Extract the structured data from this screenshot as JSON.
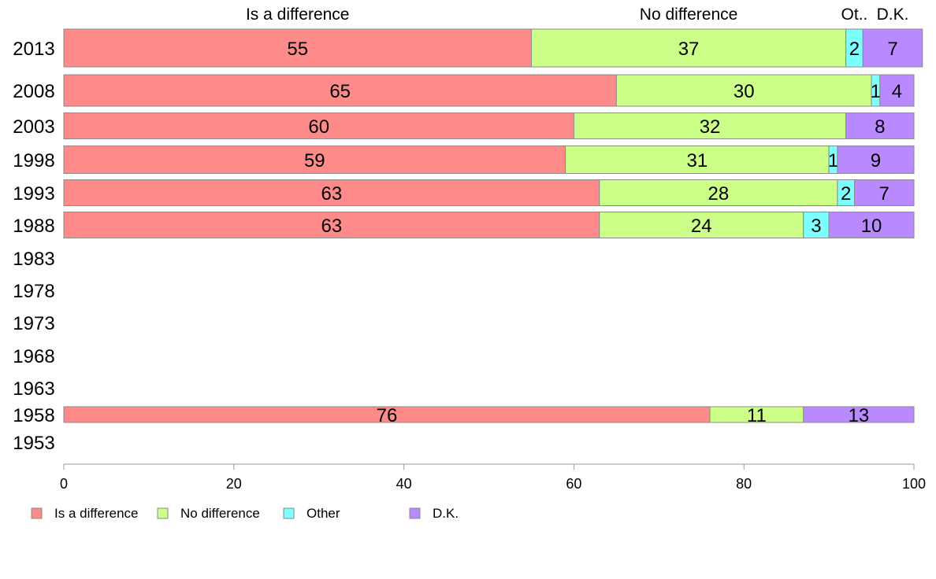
{
  "chart_data": {
    "type": "bar",
    "orientation": "horizontal",
    "stacked": true,
    "title": "",
    "xlabel": "",
    "ylabel": "",
    "xlim": [
      0,
      100
    ],
    "x_ticks": [
      "0",
      "20",
      "40",
      "60",
      "80",
      "100"
    ],
    "categories": [
      "2013",
      "2008",
      "2003",
      "1998",
      "1993",
      "1988",
      "1983",
      "1978",
      "1973",
      "1968",
      "1963",
      "1958",
      "1953"
    ],
    "column_headers": [
      "Is a difference",
      "No difference",
      "Ot..",
      "D.K."
    ],
    "series": [
      {
        "name": "Is a difference",
        "color": "#FF8A8A",
        "values": [
          55,
          65,
          60,
          59,
          63,
          63,
          null,
          null,
          null,
          null,
          null,
          76,
          null
        ]
      },
      {
        "name": "No difference",
        "color": "#CCFF88",
        "values": [
          37,
          30,
          32,
          31,
          28,
          24,
          null,
          null,
          null,
          null,
          null,
          11,
          null
        ]
      },
      {
        "name": "Other",
        "color": "#7DFFFF",
        "values": [
          2,
          1,
          0,
          1,
          2,
          3,
          null,
          null,
          null,
          null,
          null,
          0,
          null
        ]
      },
      {
        "name": "D.K.",
        "color": "#B98AFF",
        "values": [
          7,
          4,
          8,
          9,
          7,
          10,
          null,
          null,
          null,
          null,
          null,
          13,
          null
        ]
      }
    ],
    "legend_position": "bottom-left",
    "grid": false
  }
}
